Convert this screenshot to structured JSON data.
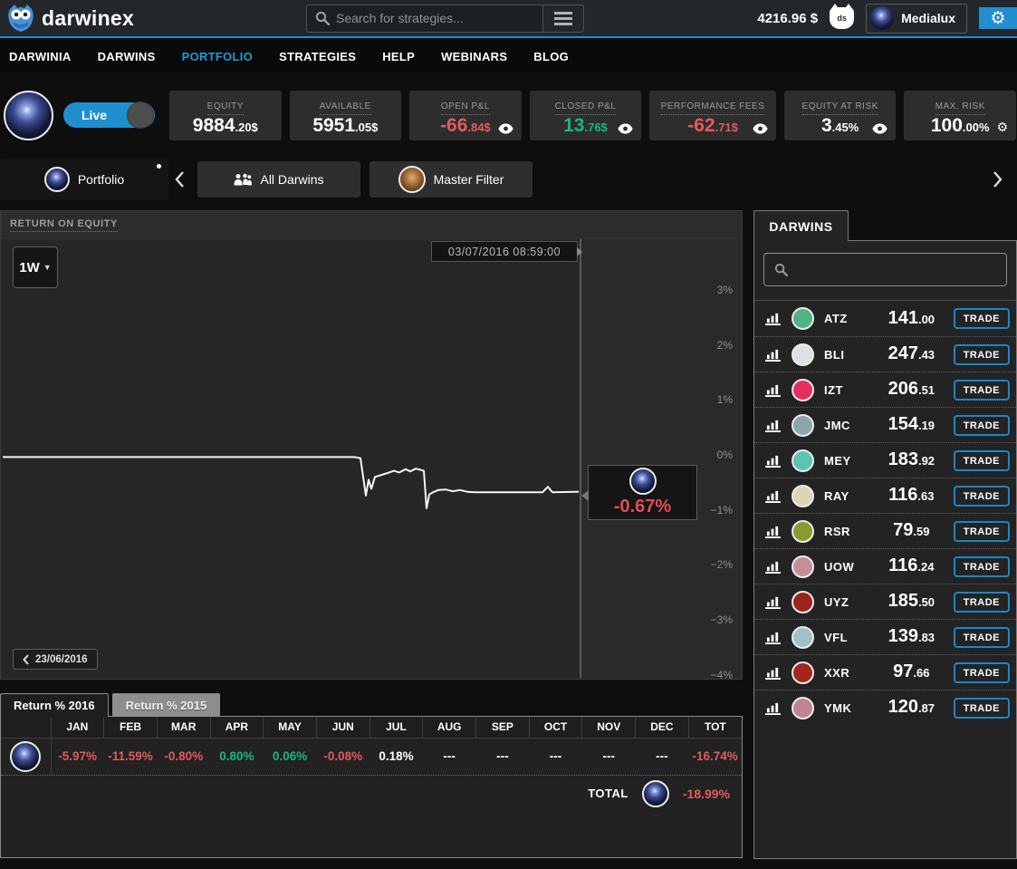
{
  "header": {
    "brand": "darwinex",
    "search_placeholder": "Search for strategies...",
    "balance": "4216.96 $",
    "badge": "ds",
    "username": "Medialux"
  },
  "nav": {
    "items": [
      {
        "label": "DARWINIA",
        "active": false
      },
      {
        "label": "DARWINS",
        "active": false
      },
      {
        "label": "PORTFOLIO",
        "active": true
      },
      {
        "label": "STRATEGIES",
        "active": false
      },
      {
        "label": "HELP",
        "active": false
      },
      {
        "label": "WEBINARS",
        "active": false
      },
      {
        "label": "BLOG",
        "active": false
      }
    ]
  },
  "account": {
    "mode_label": "Live",
    "stats": [
      {
        "label": "EQUITY",
        "main": "9884",
        "dec": ".20$",
        "tone": "white",
        "icon": "none",
        "wide": false
      },
      {
        "label": "AVAILABLE",
        "main": "5951",
        "dec": ".05$",
        "tone": "white",
        "icon": "none",
        "wide": false
      },
      {
        "label": "OPEN P&L",
        "main": "-66",
        "dec": ".84$",
        "tone": "red",
        "icon": "eye",
        "wide": false
      },
      {
        "label": "CLOSED P&L",
        "main": "13",
        "dec": ".76$",
        "tone": "green",
        "icon": "eye",
        "wide": false
      },
      {
        "label": "PERFORMANCE FEES",
        "main": "-62",
        "dec": ".71$",
        "tone": "red",
        "icon": "eye",
        "wide": true
      },
      {
        "label": "EQUITY AT RISK",
        "main": "3",
        "dec": ".45%",
        "tone": "white",
        "icon": "eye",
        "wide": false
      },
      {
        "label": "MAX. RISK",
        "main": "100",
        "dec": ".00%",
        "tone": "white",
        "icon": "gear",
        "wide": false
      }
    ]
  },
  "filter_tabs": {
    "portfolio": "Portfolio",
    "all_darwins": "All Darwins",
    "master_filter": "Master Filter"
  },
  "chart": {
    "title": "RETURN ON EQUITY",
    "period": "1W",
    "crosshair_date": "03/07/2016 08:59:00",
    "tooltip_value": "-0.67%",
    "nav_date": "23/06/2016"
  },
  "chart_data": {
    "type": "line",
    "title": "RETURN ON EQUITY",
    "ylabel": "Return on equity (%)",
    "ylim": [
      -4,
      3
    ],
    "y_ticks": [
      {
        "pct": 3,
        "label": "3%"
      },
      {
        "pct": 2,
        "label": "2%"
      },
      {
        "pct": 1,
        "label": "1%"
      },
      {
        "pct": 0,
        "label": "0%"
      },
      {
        "pct": -1,
        "label": "-1%"
      },
      {
        "pct": -2,
        "label": "-2%"
      },
      {
        "pct": -3,
        "label": "-3%"
      },
      {
        "pct": -4,
        "label": "-4%"
      }
    ],
    "x_start_label": "23/06/2016",
    "crosshair_label": "03/07/2016 08:59:00",
    "crosshair_x": 640,
    "final_value_pct": -0.67,
    "grid": false,
    "legend": "none",
    "series": [
      {
        "name": "portfolio-return-pct",
        "points": [
          [
            2,
            -0.04
          ],
          [
            390,
            -0.04
          ],
          [
            397,
            -0.06
          ],
          [
            403,
            -0.74
          ],
          [
            406,
            -0.45
          ],
          [
            409,
            -0.62
          ],
          [
            413,
            -0.4
          ],
          [
            419,
            -0.37
          ],
          [
            427,
            -0.33
          ],
          [
            434,
            -0.29
          ],
          [
            440,
            -0.32
          ],
          [
            447,
            -0.26
          ],
          [
            452,
            -0.3
          ],
          [
            458,
            -0.25
          ],
          [
            463,
            -0.27
          ],
          [
            467,
            -0.29
          ],
          [
            470,
            -0.97
          ],
          [
            473,
            -0.72
          ],
          [
            477,
            -0.68
          ],
          [
            483,
            -0.64
          ],
          [
            491,
            -0.63
          ],
          [
            499,
            -0.66
          ],
          [
            507,
            -0.64
          ],
          [
            515,
            -0.67
          ],
          [
            523,
            -0.68
          ],
          [
            555,
            -0.68
          ],
          [
            598,
            -0.68
          ],
          [
            604,
            -0.58
          ],
          [
            609,
            -0.68
          ],
          [
            638,
            -0.67
          ]
        ]
      }
    ]
  },
  "returns": {
    "tabs": [
      {
        "label": "Return % 2016",
        "active": true
      },
      {
        "label": "Return % 2015",
        "active": false
      }
    ],
    "columns": [
      "JAN",
      "FEB",
      "MAR",
      "APR",
      "MAY",
      "JUN",
      "JUL",
      "AUG",
      "SEP",
      "OCT",
      "NOV",
      "DEC",
      "TOT"
    ],
    "row": [
      {
        "value": "-5.97%",
        "tone": "red"
      },
      {
        "value": "-11.59%",
        "tone": "red"
      },
      {
        "value": "-0.80%",
        "tone": "red"
      },
      {
        "value": "0.80%",
        "tone": "green"
      },
      {
        "value": "0.06%",
        "tone": "green"
      },
      {
        "value": "-0.08%",
        "tone": "red"
      },
      {
        "value": "0.18%",
        "tone": "white"
      },
      {
        "value": "---",
        "tone": "white"
      },
      {
        "value": "---",
        "tone": "white"
      },
      {
        "value": "---",
        "tone": "white"
      },
      {
        "value": "---",
        "tone": "white"
      },
      {
        "value": "---",
        "tone": "white"
      },
      {
        "value": "-16.74%",
        "tone": "red"
      }
    ],
    "total_label": "TOTAL",
    "total_value": "-18.99%"
  },
  "darwins": {
    "tab": "DARWINS",
    "trade_label": "TRADE",
    "rows": [
      {
        "ticker": "ATZ",
        "main": "141",
        "dec": ".00",
        "color": "#52b283"
      },
      {
        "ticker": "BLI",
        "main": "247",
        "dec": ".43",
        "color": "#d9e2e4"
      },
      {
        "ticker": "IZT",
        "main": "206",
        "dec": ".51",
        "color": "#e62e5c"
      },
      {
        "ticker": "JMC",
        "main": "154",
        "dec": ".19",
        "color": "#8ba6ad"
      },
      {
        "ticker": "MEY",
        "main": "183",
        "dec": ".92",
        "color": "#5cc4b1"
      },
      {
        "ticker": "RAY",
        "main": "116",
        "dec": ".63",
        "color": "#ddd6b3"
      },
      {
        "ticker": "RSR",
        "main": "79",
        "dec": ".59",
        "color": "#8b9a30"
      },
      {
        "ticker": "UOW",
        "main": "116",
        "dec": ".24",
        "color": "#c68e96"
      },
      {
        "ticker": "UYZ",
        "main": "185",
        "dec": ".50",
        "color": "#9c241a"
      },
      {
        "ticker": "VFL",
        "main": "139",
        "dec": ".83",
        "color": "#a3bfc7"
      },
      {
        "ticker": "XXR",
        "main": "97",
        "dec": ".66",
        "color": "#a3261c"
      },
      {
        "ticker": "YMK",
        "main": "120",
        "dec": ".87",
        "color": "#bf8490"
      }
    ]
  },
  "colors": {
    "accent_blue": "#1f8fd0",
    "negative_red": "#e25c5c",
    "positive_green": "#16b87f",
    "line_white": "#f5f5f5"
  }
}
